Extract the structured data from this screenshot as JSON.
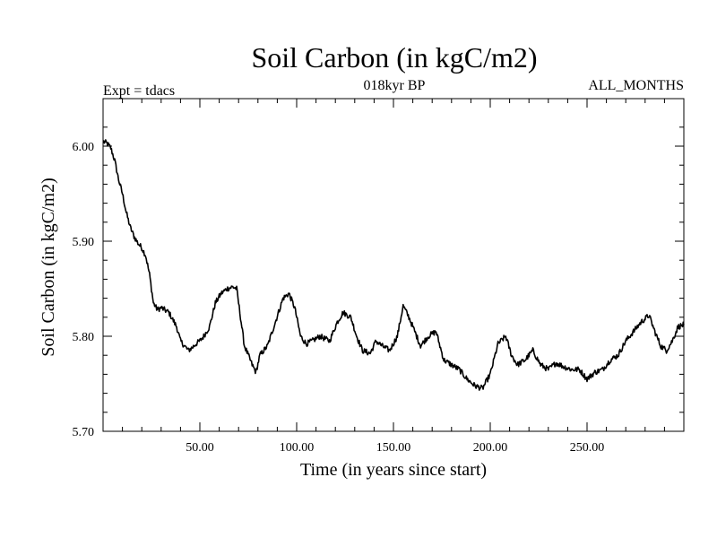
{
  "chart_data": {
    "type": "line",
    "title": "Soil Carbon (in kgC/m2)",
    "subtitle_left": "Expt = tdacs",
    "subtitle_center": "018kyr BP",
    "subtitle_right": "ALL_MONTHS",
    "xlabel": "Time (in years since start)",
    "ylabel": "Soil Carbon (in kgC/m2)",
    "xlim": [
      0,
      300
    ],
    "ylim": [
      5.7,
      6.05
    ],
    "x_ticks": [
      "50.00",
      "100.00",
      "150.00",
      "200.00",
      "250.00"
    ],
    "y_ticks": [
      "5.70",
      "5.80",
      "5.90",
      "6.00"
    ],
    "grid": false,
    "series": [
      {
        "name": "Soil Carbon",
        "x": [
          0,
          2,
          4,
          6,
          8,
          10,
          12,
          14,
          16,
          18,
          20,
          22,
          24,
          26,
          28,
          30,
          34,
          38,
          40,
          42,
          44,
          46,
          48,
          50,
          52,
          55,
          58,
          61,
          64,
          67,
          69,
          71,
          73,
          75,
          77,
          79,
          81,
          85,
          89,
          93,
          96,
          99,
          102,
          105,
          108,
          112,
          117,
          121,
          124,
          128,
          131,
          134,
          138,
          141,
          144,
          148,
          152,
          155,
          158,
          161,
          164,
          168,
          172,
          176,
          180,
          184,
          188,
          192,
          196,
          200,
          204,
          208,
          211,
          214,
          218,
          222,
          226,
          230,
          234,
          238,
          242,
          246,
          250,
          254,
          258,
          262,
          266,
          270,
          274,
          278,
          282,
          285,
          288,
          291,
          294,
          297,
          300
        ],
        "values": [
          6.005,
          6.003,
          5.998,
          5.985,
          5.965,
          5.95,
          5.93,
          5.915,
          5.905,
          5.898,
          5.893,
          5.885,
          5.865,
          5.835,
          5.828,
          5.83,
          5.825,
          5.81,
          5.795,
          5.79,
          5.785,
          5.788,
          5.792,
          5.795,
          5.8,
          5.81,
          5.835,
          5.845,
          5.85,
          5.852,
          5.85,
          5.82,
          5.79,
          5.78,
          5.77,
          5.762,
          5.78,
          5.79,
          5.815,
          5.84,
          5.845,
          5.83,
          5.8,
          5.792,
          5.795,
          5.8,
          5.795,
          5.815,
          5.825,
          5.82,
          5.8,
          5.785,
          5.782,
          5.795,
          5.79,
          5.785,
          5.8,
          5.832,
          5.82,
          5.805,
          5.79,
          5.8,
          5.805,
          5.775,
          5.77,
          5.765,
          5.755,
          5.748,
          5.745,
          5.76,
          5.792,
          5.8,
          5.78,
          5.77,
          5.775,
          5.785,
          5.77,
          5.765,
          5.772,
          5.768,
          5.765,
          5.765,
          5.755,
          5.762,
          5.765,
          5.775,
          5.78,
          5.795,
          5.805,
          5.815,
          5.822,
          5.805,
          5.79,
          5.785,
          5.795,
          5.81,
          5.812
        ]
      }
    ]
  }
}
